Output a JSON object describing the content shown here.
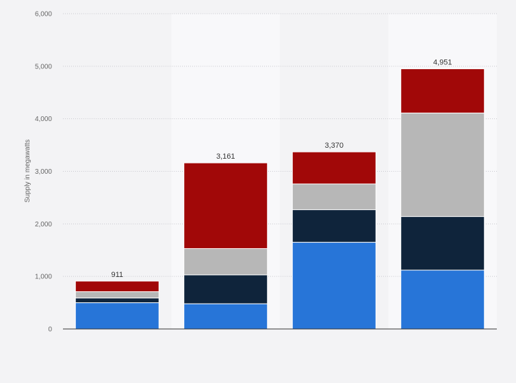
{
  "chart_data": {
    "type": "bar",
    "stacked": true,
    "title": "",
    "xlabel": "",
    "ylabel": "Supply in megawatts",
    "ylim": [
      0,
      6000
    ],
    "yticks": [
      0,
      1000,
      2000,
      3000,
      4000,
      5000,
      6000
    ],
    "ytick_labels": [
      "0",
      "1,000",
      "2,000",
      "3,000",
      "4,000",
      "5,000",
      "6,000"
    ],
    "grid": true,
    "legend": "none",
    "categories": [
      "",
      "",
      "",
      ""
    ],
    "totals": [
      911,
      3161,
      3370,
      4951
    ],
    "total_labels": [
      "911",
      "3,161",
      "3,370",
      "4,951"
    ],
    "series": [
      {
        "color": "#2775d8",
        "values": [
          500,
          480,
          1650,
          1120
        ]
      },
      {
        "color": "#0f243b",
        "values": [
          90,
          550,
          620,
          1020
        ]
      },
      {
        "color": "#b7b7b7",
        "values": [
          120,
          500,
          490,
          1970
        ]
      },
      {
        "color": "#a10808",
        "values": [
          201,
          1631,
          610,
          841
        ]
      }
    ],
    "shaded_columns": [
      1,
      3
    ]
  }
}
